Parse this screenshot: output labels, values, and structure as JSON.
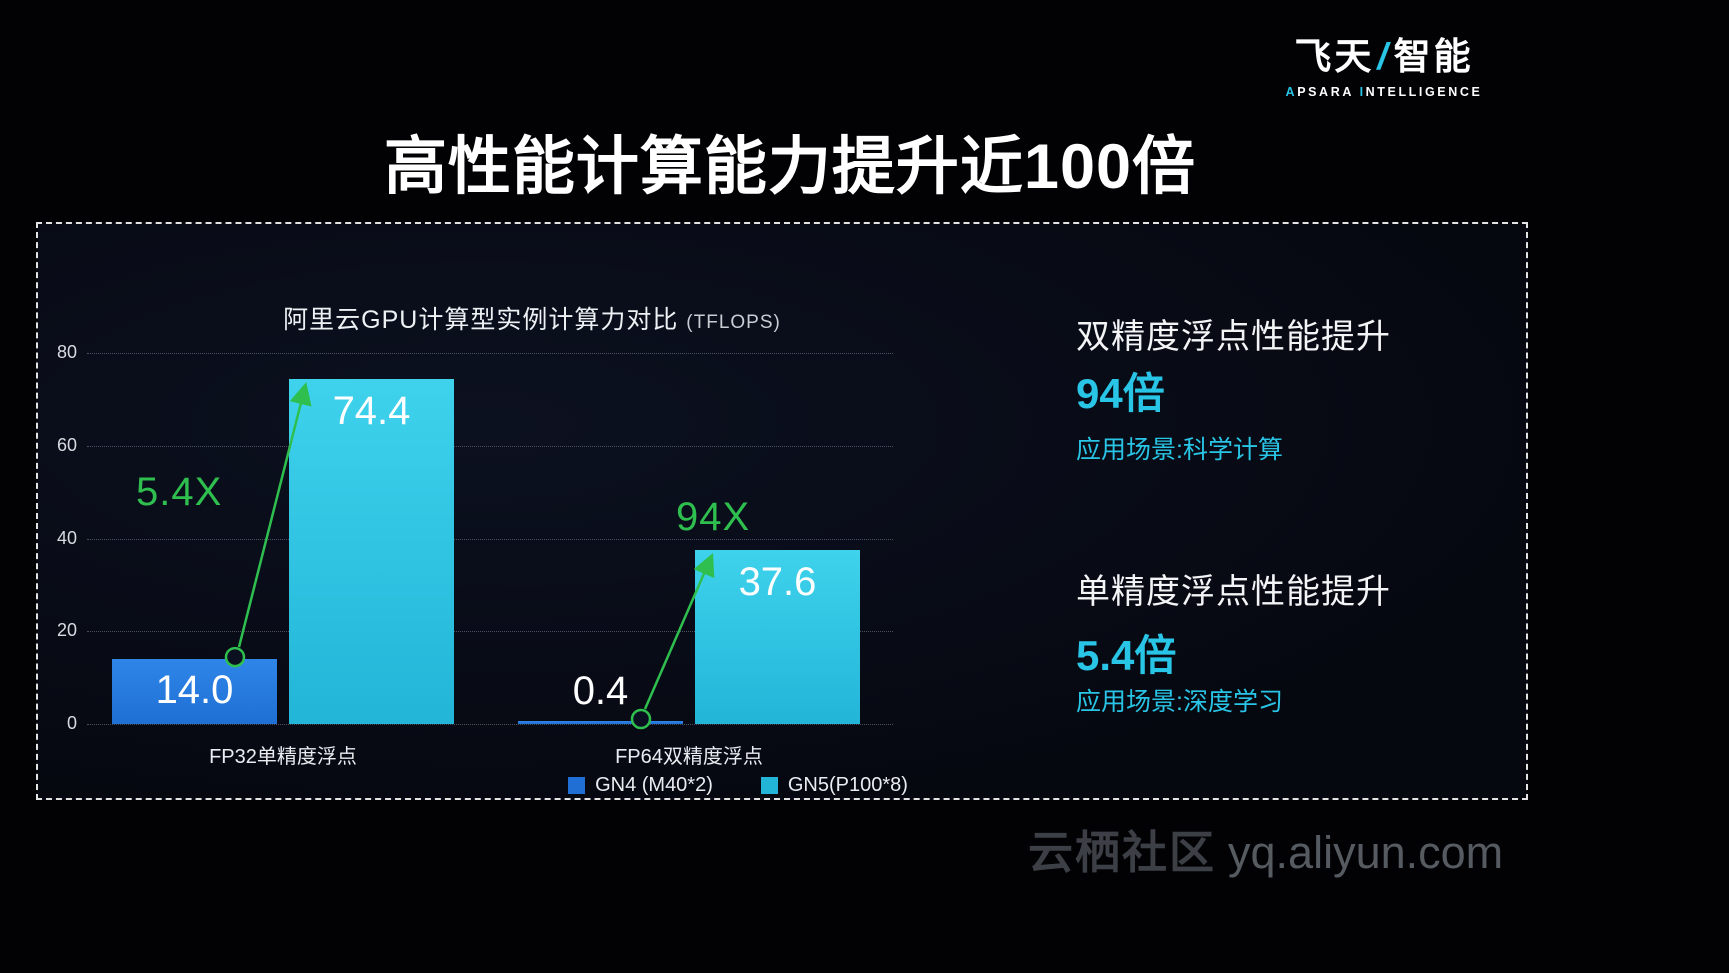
{
  "logo": {
    "name_left": "飞天",
    "slash": "/",
    "name_right": "智能",
    "sub_a": "A",
    "sub_psara": "PSARA",
    "sub_i": "I",
    "sub_ntelligence": "NTELLIGENCE"
  },
  "title": "高性能计算能力提升近100倍",
  "chart_data": {
    "type": "bar",
    "title": "阿里云GPU计算型实例计算力对比",
    "title_suffix": "(TFLOPS)",
    "categories": [
      "FP32单精度浮点",
      "FP64双精度浮点"
    ],
    "series": [
      {
        "name": "GN4 (M40*2)",
        "values": [
          14.0,
          0.4
        ],
        "color": "#1f6fd4",
        "color_top": "#2f86e8"
      },
      {
        "name": "GN5(P100*8)",
        "values": [
          74.4,
          37.6
        ],
        "color": "#22b5d8",
        "color_top": "#3fd2ec"
      }
    ],
    "annotations": [
      {
        "label": "5.4X"
      },
      {
        "label": "94X"
      }
    ],
    "ylim": [
      0,
      80
    ],
    "yticks": [
      0,
      20,
      40,
      60,
      80
    ],
    "grid": true,
    "legend_position": "bottom"
  },
  "right_panel": {
    "item1_title": "双精度浮点性能提升",
    "item1_value": "94倍",
    "item1_scenario": "应用场景:科学计算",
    "item2_title": "单精度浮点性能提升",
    "item2_value": "5.4倍",
    "item2_scenario": "应用场景:深度学习"
  },
  "watermark": {
    "brand": "云栖社区",
    "url": "yq.aliyun.com"
  },
  "colors": {
    "accent_cyan": "#29c5e6",
    "annotation_green": "#2fbf4f",
    "bar_blue": "#1f6fd4",
    "bar_cyan": "#22b5d8"
  }
}
